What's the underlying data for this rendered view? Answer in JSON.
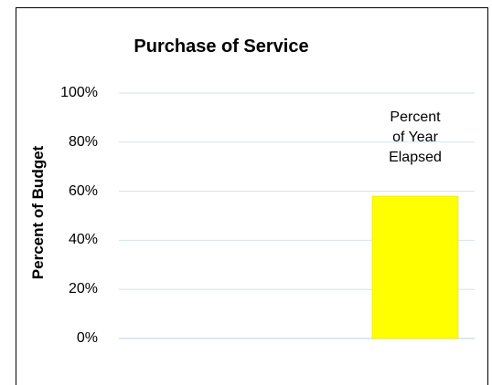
{
  "chart_data": {
    "type": "bar",
    "title": "Purchase of Service",
    "xlabel": "",
    "ylabel": "Percent of Budget",
    "ylim": [
      0,
      100
    ],
    "y_ticks": [
      "0%",
      "20%",
      "40%",
      "60%",
      "80%",
      "100%"
    ],
    "grid": true,
    "series": [
      {
        "values": [
          58
        ],
        "color": "#ffff00",
        "label_lines": [
          "Percent",
          "of Year",
          "Elapsed"
        ]
      }
    ]
  }
}
